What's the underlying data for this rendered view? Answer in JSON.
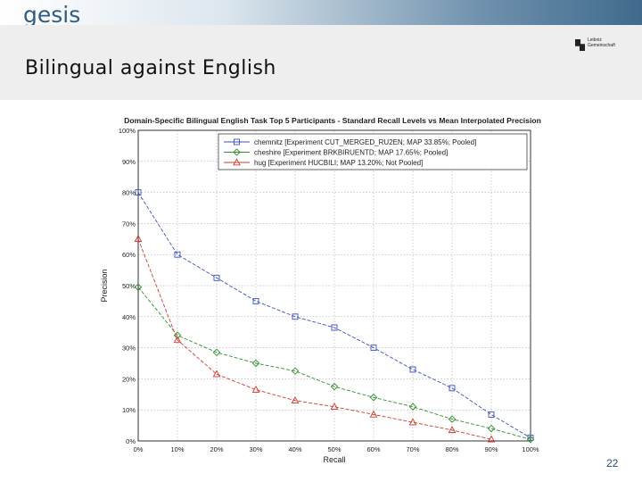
{
  "header": {
    "logo_text": "gesis",
    "title": "Bilingual against English",
    "partner_logo_text": [
      "Leibniz",
      "Gemeinschaft"
    ]
  },
  "footer": {
    "page_number": "22"
  },
  "colors": {
    "band": "#3f6a8d",
    "chemnitz": "#3a4fc0",
    "cheshire": "#2f8f2f",
    "hug": "#d03a2e"
  },
  "chart_data": {
    "type": "line",
    "title": "Domain-Specific Bilingual English Task Top 5 Participants - Standard Recall Levels vs Mean Interpolated Precision",
    "xlabel": "Recall",
    "ylabel": "Precision",
    "x": [
      0,
      10,
      20,
      30,
      40,
      50,
      60,
      70,
      80,
      90,
      100
    ],
    "x_tick_labels": [
      "0%",
      "10%",
      "20%",
      "30%",
      "40%",
      "50%",
      "60%",
      "70%",
      "80%",
      "90%",
      "100%"
    ],
    "y_tick_labels": [
      "0%",
      "10%",
      "20%",
      "30%",
      "40%",
      "50%",
      "60%",
      "70%",
      "80%",
      "90%",
      "100%"
    ],
    "y_ticks": [
      0,
      10,
      20,
      30,
      40,
      50,
      60,
      70,
      80,
      90,
      100
    ],
    "xlim": [
      0,
      100
    ],
    "ylim": [
      0,
      100
    ],
    "grid": true,
    "legend_position": "top-right",
    "series": [
      {
        "name": "chemnitz [Experiment CUT_MERGED_RU2EN; MAP 33.85%; Pooled]",
        "color": "#3a4fc0",
        "marker": "square",
        "values": [
          80,
          60,
          52.5,
          45,
          40,
          36.5,
          30,
          23,
          17,
          8.5,
          1
        ]
      },
      {
        "name": "cheshire [Experiment BRKBIRUENTD; MAP 17.65%; Pooled]",
        "color": "#2f8f2f",
        "marker": "diamond",
        "values": [
          49.5,
          34,
          28.5,
          25,
          22.5,
          17.5,
          14,
          11,
          7,
          4,
          0.5
        ]
      },
      {
        "name": "hug [Experiment HUCBILI; MAP 13.20%; Not Pooled]",
        "color": "#d03a2e",
        "marker": "triangle",
        "values": [
          65,
          32.5,
          21.5,
          16.5,
          13,
          11,
          8.5,
          6,
          3.5,
          0.5,
          null
        ]
      }
    ]
  }
}
